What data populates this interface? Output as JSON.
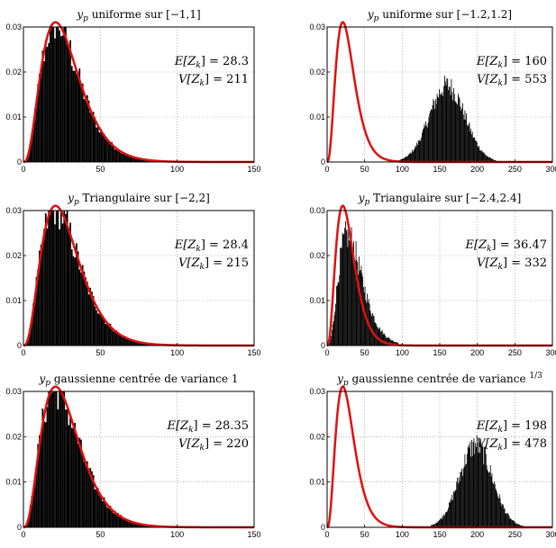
{
  "chart_data": [
    {
      "type": "bar",
      "title": "y_p uniforme sur [−1,1]",
      "title_var": "y",
      "title_sub": "p",
      "title_rest": " uniforme sur [−1,1]",
      "xlim": [
        0,
        150
      ],
      "ylim": [
        0,
        0.03
      ],
      "xticks": [
        "0",
        "50",
        "100",
        "150"
      ],
      "yticks": [
        "0",
        "0.01",
        "0.02",
        "0.03"
      ],
      "grid": true,
      "histogram": {
        "mean": 28.3,
        "sd": 14.5,
        "x_start": 0,
        "x_end": 85
      },
      "pdf_curve": {
        "color": "#e01010",
        "mean": 28.3,
        "variance": 211,
        "x_range": [
          0,
          150
        ]
      },
      "annotations": [
        "E[Z_k] = 28.3",
        "V[Z_k] = 211"
      ],
      "stats": {
        "E": "E[Z",
        "E_val": "] = 28.3",
        "V": "V[Z",
        "V_val": "] = 211"
      }
    },
    {
      "type": "bar",
      "title": "y_p uniforme sur [−1.2,1.2]",
      "title_var": "y",
      "title_sub": "p",
      "title_rest": " uniforme sur [−1.2,1.2]",
      "xlim": [
        0,
        300
      ],
      "ylim": [
        0,
        0.03
      ],
      "xticks": [
        "0",
        "50",
        "100",
        "150",
        "200",
        "250",
        "300"
      ],
      "yticks": [
        "0",
        "0.01",
        "0.02",
        "0.03"
      ],
      "grid": true,
      "histogram": {
        "mean": 160,
        "sd": 23.5,
        "x_start": 95,
        "x_end": 225
      },
      "pdf_curve": {
        "color": "#e01010",
        "mean": 28.3,
        "variance": 211,
        "x_range": [
          0,
          300
        ]
      },
      "annotations": [
        "E[Z_k] = 160",
        "V[Z_k] = 553"
      ],
      "stats": {
        "E": "E[Z",
        "E_val": "] = 160",
        "V": "V[Z",
        "V_val": "] = 553"
      }
    },
    {
      "type": "bar",
      "title": "y_p Triangulaire sur [−2,2]",
      "title_var": "y",
      "title_sub": "p",
      "title_rest": " Triangulaire sur [−2,2]",
      "xlim": [
        0,
        150
      ],
      "ylim": [
        0,
        0.03
      ],
      "xticks": [
        "0",
        "50",
        "100",
        "150"
      ],
      "yticks": [
        "0",
        "0.01",
        "0.02",
        "0.03"
      ],
      "grid": true,
      "histogram": {
        "mean": 28.4,
        "sd": 14.7,
        "x_start": 0,
        "x_end": 88
      },
      "pdf_curve": {
        "color": "#e01010",
        "mean": 28.3,
        "variance": 211,
        "x_range": [
          0,
          150
        ]
      },
      "annotations": [
        "E[Z_k] = 28.4",
        "V[Z_k] = 215"
      ],
      "stats": {
        "E": "E[Z",
        "E_val": "] = 28.4",
        "V": "V[Z",
        "V_val": "] = 215"
      }
    },
    {
      "type": "bar",
      "title": "y_p Triangulaire sur [−2.4,2.4]",
      "title_var": "y",
      "title_sub": "p",
      "title_rest": " Triangulaire sur [−2.4,2.4]",
      "xlim": [
        0,
        300
      ],
      "ylim": [
        0,
        0.03
      ],
      "xticks": [
        "0",
        "50",
        "100",
        "150",
        "200",
        "250",
        "300"
      ],
      "yticks": [
        "0",
        "0.01",
        "0.02",
        "0.03"
      ],
      "grid": true,
      "histogram": {
        "mean": 36.47,
        "sd": 18.2,
        "x_start": 3,
        "x_end": 95
      },
      "pdf_curve": {
        "color": "#e01010",
        "mean": 28.3,
        "variance": 211,
        "x_range": [
          0,
          300
        ]
      },
      "annotations": [
        "E[Z_k] = 36.47",
        "V[Z_k] = 332"
      ],
      "stats": {
        "E": "E[Z",
        "E_val": "] = 36.47",
        "V": "V[Z",
        "V_val": "] = 332"
      }
    },
    {
      "type": "bar",
      "title": "y_p gaussienne centrée de variance 1",
      "title_var": "y",
      "title_sub": "p",
      "title_rest": " gaussienne centrée de variance 1",
      "xlim": [
        0,
        150
      ],
      "ylim": [
        0,
        0.03
      ],
      "xticks": [
        "0",
        "50",
        "100",
        "150"
      ],
      "yticks": [
        "0",
        "0.01",
        "0.02",
        "0.03"
      ],
      "grid": true,
      "histogram": {
        "mean": 28.35,
        "sd": 14.8,
        "x_start": 0,
        "x_end": 88
      },
      "pdf_curve": {
        "color": "#e01010",
        "mean": 28.3,
        "variance": 211,
        "x_range": [
          0,
          150
        ]
      },
      "annotations": [
        "E[Z_k] = 28.35",
        "V[Z_k] = 220"
      ],
      "stats": {
        "E": "E[Z",
        "E_val": "] = 28.35",
        "V": "V[Z",
        "V_val": "] = 220"
      }
    },
    {
      "type": "bar",
      "title": "y_p gaussienne centrée de variance 1/3",
      "title_var": "y",
      "title_sub": "p",
      "title_rest": " gaussienne centrée de variance ",
      "title_frac_num": "1",
      "title_frac_den": "3",
      "xlim": [
        0,
        300
      ],
      "ylim": [
        0,
        0.03
      ],
      "xticks": [
        "0",
        "50",
        "100",
        "150",
        "200",
        "250",
        "300"
      ],
      "yticks": [
        "0",
        "0.01",
        "0.02",
        "0.03"
      ],
      "grid": true,
      "histogram": {
        "mean": 198,
        "sd": 21.9,
        "x_start": 138,
        "x_end": 262
      },
      "pdf_curve": {
        "color": "#e01010",
        "mean": 28.3,
        "variance": 211,
        "x_range": [
          0,
          300
        ]
      },
      "annotations": [
        "E[Z_k] = 198",
        "V[Z_k] = 478"
      ],
      "stats": {
        "E": "E[Z",
        "E_val": "] = 198",
        "V": "V[Z",
        "V_val": "] = 478"
      }
    }
  ]
}
